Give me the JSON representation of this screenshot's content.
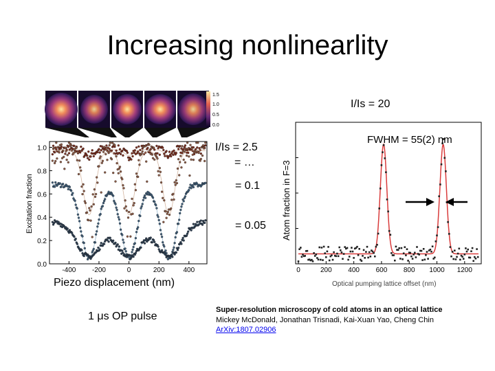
{
  "slide": {
    "title": "Increasing nonlinearlity",
    "label_is20": "I/Is = 20",
    "label_is25": "I/Is = 2.5",
    "label_dots": "= …",
    "label_01": "= 0.1",
    "label_005": "= 0.05",
    "fwhm": "FWHM = 55(2) nm",
    "piezo": "Piezo displacement (nm)",
    "pulse": "1 μs OP pulse"
  },
  "citation": {
    "title": "Super-resolution microscopy of cold atoms in an optical lattice",
    "authors": "Mickey McDonald, Jonathan Trisnadi, Kai-Xuan Yao, Cheng Chin",
    "link": "ArXiv:1807.02906"
  },
  "colorbar": {
    "ticks": [
      "1.5",
      "1.0",
      "0.5",
      "0.0"
    ]
  },
  "chart_data": [
    {
      "type": "scatter",
      "title": "",
      "xlabel": "Piezo displacement (nm)",
      "ylabel": "Excitation fraction",
      "xlim": [
        -530,
        520
      ],
      "ylim": [
        0,
        1.05
      ],
      "xticks": [
        "-400",
        "-200",
        "0",
        "200",
        "400"
      ],
      "xtick_values": [
        -400,
        -200,
        0,
        200,
        400
      ],
      "yticks": [
        "0.0",
        "0.2",
        "0.4",
        "0.6",
        "0.8",
        "1.0"
      ],
      "ytick_values": [
        0,
        0.2,
        0.4,
        0.6,
        0.8,
        1.0
      ],
      "x_range": [
        -510,
        510
      ],
      "period_nm": 266,
      "minima_x": [
        -266,
        0,
        266
      ],
      "series": [
        {
          "name": "I/Is = 20",
          "color": "#7a2f20",
          "baseline": 0.98,
          "depth": 0.05,
          "width_nm": 30,
          "noise": 0.04
        },
        {
          "name": "I/Is = 2.5",
          "color": "#8a5a45",
          "baseline": 0.97,
          "depth": 0.55,
          "width_nm": 40,
          "noise": 0.09
        },
        {
          "name": "I/Is = 0.1",
          "color": "#3f5d78",
          "baseline": 0.68,
          "depth": 0.63,
          "width_nm": 55,
          "noise": 0.02
        },
        {
          "name": "I/Is = 0.05",
          "color": "#2e3f52",
          "baseline": 0.36,
          "depth": 0.3,
          "width_nm": 80,
          "noise": 0.02
        }
      ]
    },
    {
      "type": "line",
      "title": "",
      "xlabel": "Optical pumping lattice offset (nm)",
      "ylabel": "Atom fraction in F=3",
      "xlim": [
        -20,
        1320
      ],
      "ylim": [
        0,
        1
      ],
      "xticks": [
        "0",
        "200",
        "400",
        "600",
        "800",
        "1000",
        "1200"
      ],
      "xtick_values": [
        0,
        200,
        400,
        600,
        800,
        1000,
        1200
      ],
      "peaks_x": [
        615,
        1045
      ],
      "fwhm_nm": 55,
      "baseline": 0.08,
      "peak_height": 0.88,
      "data_color": "#222222",
      "fit_color": "#d93b3b"
    }
  ],
  "colors": {
    "fit_red": "#d93b3b",
    "link_blue": "#0000ee"
  }
}
